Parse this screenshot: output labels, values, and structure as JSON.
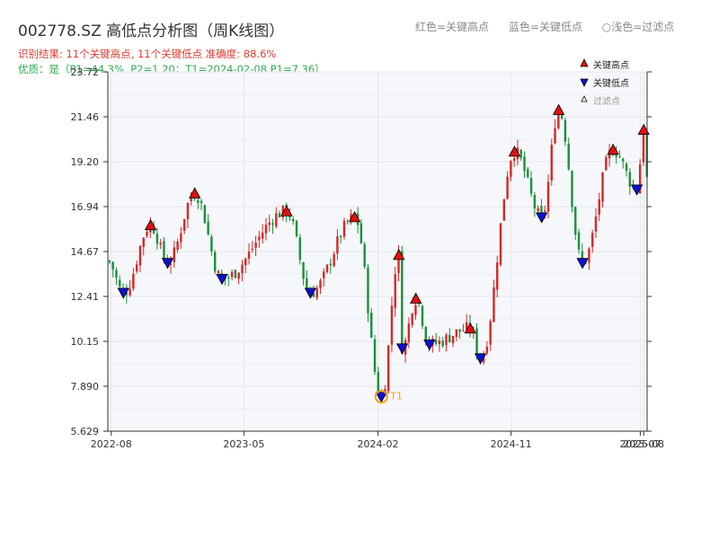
{
  "header": {
    "title": "002778.SZ 高低点分析图（周K线图）",
    "result_text": "识别结果: 11个关键高点, 11个关键低点   准确度: 88.6%",
    "quality_text": "优质：是（P1=44.3%, P2=1.20；T1=2024-02-08 P1=7.36）",
    "legend_red": "红色=关键高点",
    "legend_blue": "蓝色=关键低点",
    "legend_light": "○浅色=过滤点"
  },
  "legend": {
    "high": "关键高点",
    "low": "关键低点",
    "filtered": "过滤点"
  },
  "colors": {
    "up": "#d62728",
    "down": "#1a8f3c",
    "high_marker": "#e01010",
    "low_marker": "#1010d0",
    "t1": "#f0a020",
    "plot_bg": "#f5f7fa"
  },
  "chart_data": {
    "type": "candlestick",
    "title": "002778.SZ 高低点分析图（周K线图）",
    "ylim": [
      5.629,
      23.72
    ],
    "yticks": [
      "5.629",
      "7.890",
      "10.15",
      "12.41",
      "14.67",
      "16.94",
      "19.20",
      "21.46",
      "23.72"
    ],
    "xticks": [
      "2022-08",
      "2023-05",
      "2024-02",
      "2024-11",
      "2025-07",
      "2025-08"
    ],
    "x_range": [
      "2022-07-25",
      "2025-08-08"
    ],
    "key_highs": [
      {
        "date": "2022-10-21",
        "value": 16.0
      },
      {
        "date": "2023-01-20",
        "value": 17.6
      },
      {
        "date": "2023-07-28",
        "value": 16.7
      },
      {
        "date": "2023-12-15",
        "value": 16.4
      },
      {
        "date": "2024-03-15",
        "value": 14.5
      },
      {
        "date": "2024-04-19",
        "value": 12.3
      },
      {
        "date": "2024-08-09",
        "value": 10.8
      },
      {
        "date": "2024-11-08",
        "value": 19.7
      },
      {
        "date": "2025-02-07",
        "value": 21.8
      },
      {
        "date": "2025-05-30",
        "value": 19.8
      },
      {
        "date": "2025-08-01",
        "value": 20.8
      }
    ],
    "key_lows": [
      {
        "date": "2022-08-26",
        "value": 12.6
      },
      {
        "date": "2022-11-25",
        "value": 14.1
      },
      {
        "date": "2023-03-17",
        "value": 13.3
      },
      {
        "date": "2023-09-15",
        "value": 12.6
      },
      {
        "date": "2024-02-08",
        "value": 7.36
      },
      {
        "date": "2024-03-22",
        "value": 9.8
      },
      {
        "date": "2024-05-17",
        "value": 10.0
      },
      {
        "date": "2024-08-30",
        "value": 9.3
      },
      {
        "date": "2025-01-03",
        "value": 16.4
      },
      {
        "date": "2025-03-28",
        "value": 14.1
      },
      {
        "date": "2025-07-18",
        "value": 17.8
      }
    ],
    "t1": {
      "label": "T1",
      "date": "2024-02-08",
      "value": 7.36
    }
  }
}
